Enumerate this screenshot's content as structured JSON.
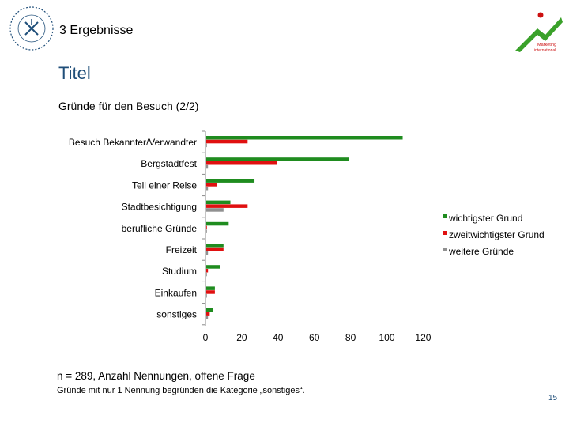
{
  "header": {
    "section": "3 Ergebnisse",
    "title": "Titel",
    "subtitle": "Gründe für den Besuch (2/2)"
  },
  "footer": {
    "note": "n = 289, Anzahl Nennungen, offene Frage",
    "footnote": "Gründe mit nur 1 Nennung begründen die Kategorie „sonstiges“.",
    "page": "15"
  },
  "colors": {
    "series1": "#1f8c1f",
    "series2": "#e01010",
    "series3": "#909090",
    "accent": "#1f4e79"
  },
  "chart_data": {
    "type": "bar",
    "orientation": "horizontal",
    "categories": [
      "Besuch Bekannter/Verwandter",
      "Bergstadtfest",
      "Teil einer Reise",
      "Stadtbesichtigung",
      "berufliche Gründe",
      "Freizeit",
      "Studium",
      "Einkaufen",
      "sonstiges"
    ],
    "series": [
      {
        "name": "wichtigster Grund",
        "values": [
          114,
          83,
          28,
          14,
          13,
          10,
          8,
          5,
          4
        ]
      },
      {
        "name": "zweitwichtigster Grund",
        "values": [
          24,
          41,
          6,
          24,
          0,
          10,
          1,
          5,
          2
        ]
      },
      {
        "name": "weitere Gründe",
        "values": [
          0,
          1,
          1,
          10,
          0,
          1,
          0,
          0,
          1
        ]
      }
    ],
    "xlim": [
      0,
      120
    ],
    "xticks": [
      "0",
      "20",
      "40",
      "60",
      "80",
      "100",
      "120"
    ],
    "legend": "right",
    "grid": false
  }
}
